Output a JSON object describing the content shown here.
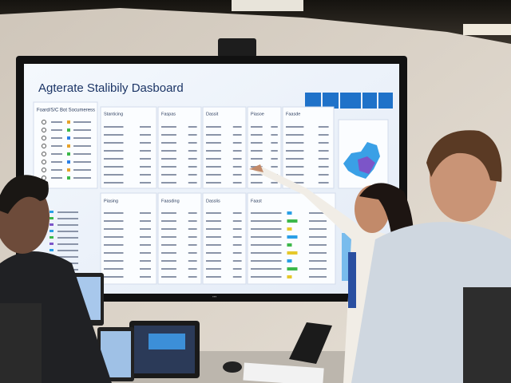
{
  "screen": {
    "title": "Agterate Stalibily Dasboard",
    "sidebar_title": "Foard/S/C Bot Socumeress",
    "panel_headers": [
      "Stanticing",
      "Faspas",
      "Dassit",
      "Piasoe",
      "Faasde"
    ],
    "lower_headers": [
      "Piasing",
      "Faasding",
      "Dasslis",
      "Faast"
    ]
  }
}
